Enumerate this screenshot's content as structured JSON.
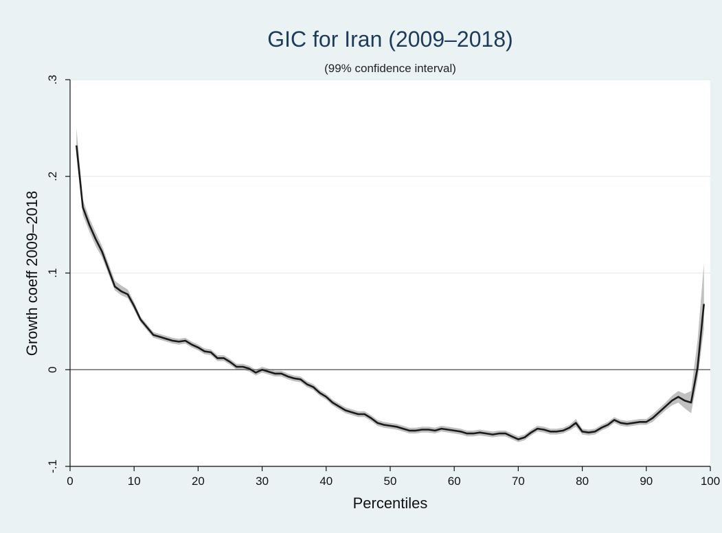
{
  "chart_data": {
    "type": "line",
    "title": "GIC for Iran (2009–2018)",
    "subtitle": "(99% confidence interval)",
    "xlabel": "Percentiles",
    "ylabel": "Growth coeff 2009–2018",
    "xlim": [
      0,
      100
    ],
    "ylim": [
      -0.1,
      0.3
    ],
    "x_ticks": [
      0,
      10,
      20,
      30,
      40,
      50,
      60,
      70,
      80,
      90,
      100
    ],
    "x_tick_labels": [
      "0",
      "10",
      "20",
      "30",
      "40",
      "50",
      "60",
      "70",
      "80",
      "90",
      "100"
    ],
    "y_ticks": [
      -0.1,
      0,
      0.1,
      0.2,
      0.3
    ],
    "y_tick_labels": [
      "-.1",
      "0",
      ".1",
      ".2",
      ".3"
    ],
    "grid": true,
    "reference_line_y": 0,
    "colors": {
      "background": "#eaf2f3",
      "plot_background": "#ffffff",
      "line": "#1a1a1a",
      "band": "#b5b5b5",
      "title": "#1e3b5a",
      "gridline": "#e4ebec"
    },
    "series": [
      {
        "x": [
          1,
          2,
          3,
          4,
          5,
          6,
          7,
          8,
          9,
          10,
          11,
          12,
          13,
          14,
          15,
          16,
          17,
          18,
          19,
          20,
          21,
          22,
          23,
          24,
          25,
          26,
          27,
          28,
          29,
          30,
          31,
          32,
          33,
          34,
          35,
          36,
          37,
          38,
          39,
          40,
          41,
          42,
          43,
          44,
          45,
          46,
          47,
          48,
          49,
          50,
          51,
          52,
          53,
          54,
          55,
          56,
          57,
          58,
          59,
          60,
          61,
          62,
          63,
          64,
          65,
          66,
          67,
          68,
          69,
          70,
          71,
          72,
          73,
          74,
          75,
          76,
          77,
          78,
          79,
          80,
          81,
          82,
          83,
          84,
          85,
          86,
          87,
          88,
          89,
          90,
          91,
          92,
          93,
          94,
          95,
          96,
          97,
          98,
          99
        ],
        "values": [
          0.232,
          0.168,
          0.15,
          0.135,
          0.122,
          0.104,
          0.086,
          0.081,
          0.078,
          0.066,
          0.052,
          0.044,
          0.036,
          0.034,
          0.032,
          0.03,
          0.029,
          0.03,
          0.026,
          0.023,
          0.019,
          0.018,
          0.012,
          0.012,
          0.008,
          0.003,
          0.003,
          0.001,
          -0.003,
          0.0,
          -0.002,
          -0.004,
          -0.004,
          -0.007,
          -0.009,
          -0.01,
          -0.015,
          -0.018,
          -0.024,
          -0.028,
          -0.034,
          -0.038,
          -0.042,
          -0.044,
          -0.046,
          -0.046,
          -0.05,
          -0.055,
          -0.057,
          -0.058,
          -0.059,
          -0.061,
          -0.063,
          -0.063,
          -0.062,
          -0.062,
          -0.063,
          -0.061,
          -0.062,
          -0.063,
          -0.064,
          -0.066,
          -0.066,
          -0.065,
          -0.066,
          -0.067,
          -0.066,
          -0.066,
          -0.069,
          -0.072,
          -0.07,
          -0.065,
          -0.061,
          -0.062,
          -0.064,
          -0.064,
          -0.063,
          -0.06,
          -0.055,
          -0.064,
          -0.065,
          -0.064,
          -0.06,
          -0.057,
          -0.052,
          -0.055,
          -0.056,
          -0.055,
          -0.054,
          -0.054,
          -0.05,
          -0.044,
          -0.038,
          -0.032,
          -0.028,
          -0.032,
          -0.034,
          0.002,
          0.068
        ],
        "lower": [
          0.222,
          0.16,
          0.143,
          0.128,
          0.116,
          0.099,
          0.082,
          0.077,
          0.074,
          0.062,
          0.049,
          0.041,
          0.033,
          0.031,
          0.029,
          0.027,
          0.026,
          0.027,
          0.023,
          0.02,
          0.016,
          0.015,
          0.009,
          0.009,
          0.005,
          0.0,
          0.0,
          -0.002,
          -0.006,
          -0.003,
          -0.005,
          -0.007,
          -0.007,
          -0.01,
          -0.012,
          -0.013,
          -0.018,
          -0.021,
          -0.027,
          -0.031,
          -0.037,
          -0.041,
          -0.045,
          -0.047,
          -0.049,
          -0.049,
          -0.053,
          -0.058,
          -0.06,
          -0.061,
          -0.062,
          -0.064,
          -0.066,
          -0.066,
          -0.065,
          -0.065,
          -0.066,
          -0.064,
          -0.065,
          -0.066,
          -0.067,
          -0.069,
          -0.069,
          -0.068,
          -0.069,
          -0.07,
          -0.069,
          -0.069,
          -0.072,
          -0.075,
          -0.073,
          -0.068,
          -0.064,
          -0.065,
          -0.067,
          -0.067,
          -0.066,
          -0.063,
          -0.059,
          -0.067,
          -0.068,
          -0.067,
          -0.063,
          -0.06,
          -0.055,
          -0.058,
          -0.059,
          -0.058,
          -0.057,
          -0.057,
          -0.054,
          -0.048,
          -0.042,
          -0.037,
          -0.034,
          -0.04,
          -0.045,
          -0.01,
          0.042
        ],
        "upper": [
          0.25,
          0.176,
          0.157,
          0.142,
          0.128,
          0.11,
          0.092,
          0.087,
          0.083,
          0.07,
          0.055,
          0.047,
          0.039,
          0.037,
          0.035,
          0.033,
          0.032,
          0.033,
          0.029,
          0.026,
          0.022,
          0.021,
          0.015,
          0.015,
          0.011,
          0.006,
          0.006,
          0.004,
          0.0,
          0.003,
          0.001,
          -0.001,
          -0.001,
          -0.004,
          -0.006,
          -0.007,
          -0.012,
          -0.015,
          -0.021,
          -0.025,
          -0.031,
          -0.035,
          -0.039,
          -0.041,
          -0.043,
          -0.043,
          -0.047,
          -0.052,
          -0.054,
          -0.055,
          -0.056,
          -0.058,
          -0.06,
          -0.06,
          -0.059,
          -0.059,
          -0.06,
          -0.058,
          -0.059,
          -0.06,
          -0.061,
          -0.063,
          -0.063,
          -0.062,
          -0.063,
          -0.064,
          -0.063,
          -0.063,
          -0.066,
          -0.069,
          -0.067,
          -0.062,
          -0.058,
          -0.059,
          -0.061,
          -0.061,
          -0.06,
          -0.057,
          -0.051,
          -0.061,
          -0.062,
          -0.061,
          -0.057,
          -0.054,
          -0.049,
          -0.052,
          -0.053,
          -0.052,
          -0.051,
          -0.051,
          -0.046,
          -0.04,
          -0.034,
          -0.027,
          -0.022,
          -0.025,
          -0.022,
          0.03,
          0.11
        ]
      }
    ]
  }
}
